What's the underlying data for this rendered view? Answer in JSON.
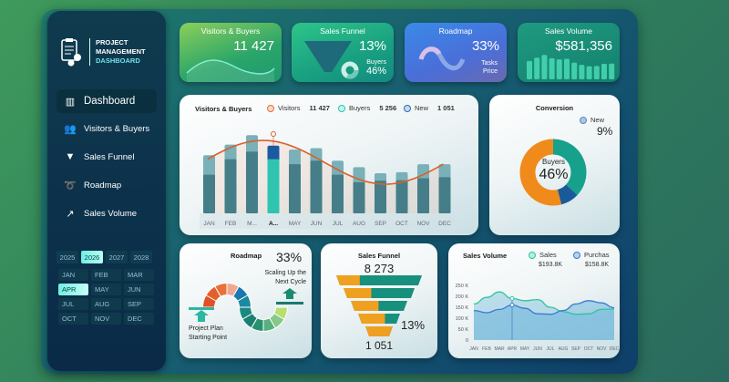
{
  "sidebar": {
    "logo": {
      "line1": "PROJECT",
      "line2": "MANAGEMENT",
      "line3": "DASHBOARD",
      "icon": "clipboard-gears-icon"
    },
    "nav": [
      {
        "label": "Dashboard",
        "icon": "bar-chart-icon",
        "active": true
      },
      {
        "label": "Visitors & Buyers",
        "icon": "users-icon"
      },
      {
        "label": "Sales Funnel",
        "icon": "funnel-icon"
      },
      {
        "label": "Roadmap",
        "icon": "road-icon"
      },
      {
        "label": "Sales Volume",
        "icon": "trend-icon"
      }
    ],
    "years": [
      "2025",
      "2026",
      "2027",
      "2028"
    ],
    "selected_year": "2026",
    "months": [
      "JAN",
      "FEB",
      "MAR",
      "APR",
      "MAY",
      "JUN",
      "JUL",
      "AUG",
      "SEP",
      "OCT",
      "NOV",
      "DEC"
    ],
    "selected_month": "APR"
  },
  "kpis": {
    "visitors": {
      "title": "Visitors & Buyers",
      "value": "11 427"
    },
    "funnel": {
      "title": "Sales Funnel",
      "value": "13%",
      "sub_label": "Buyers",
      "sub_value": "46%"
    },
    "roadmap": {
      "title": "Roadmap",
      "value": "33%",
      "line1": "Tasks",
      "line2": "Price"
    },
    "sales": {
      "title": "Sales Volume",
      "value": "$581,356"
    }
  },
  "visitors_chart": {
    "title": "Visitors & Buyers",
    "legend": [
      {
        "name": "Visitors",
        "value": "11 427",
        "color": "#e8703a"
      },
      {
        "name": "Buyers",
        "value": "5 256",
        "color": "#2ec4b0"
      },
      {
        "name": "New",
        "value": "1 051",
        "color": "#2a6fb0"
      }
    ],
    "categories": [
      "JAN",
      "FEB",
      "M...",
      "A...",
      "MAY",
      "JUN",
      "JUL",
      "AUG",
      "SEP",
      "OCT",
      "NOV",
      "DEC"
    ],
    "selected_index": 3,
    "totals": [
      116,
      137,
      156,
      135,
      127,
      130,
      105,
      92,
      80,
      82,
      98,
      98
    ],
    "inner": [
      77,
      108,
      123,
      108,
      98,
      105,
      77,
      62,
      65,
      66,
      70,
      72
    ]
  },
  "conversion": {
    "title": "Conversion",
    "legend_label": "New",
    "legend_value": "9%",
    "center_label": "Buyers",
    "center_value": "46%",
    "slices": [
      {
        "value": 37,
        "color": "#17a08c"
      },
      {
        "value": 9,
        "color": "#1a5a9a"
      },
      {
        "value": 54,
        "color": "#f08a1a"
      }
    ]
  },
  "roadmap": {
    "title": "Roadmap",
    "value": "33%",
    "end_label1": "Scaling Up the",
    "end_label2": "Next Cycle",
    "start_label1": "Project Plan",
    "start_label2": "Starting Point"
  },
  "funnel": {
    "title": "Sales Funnel",
    "top_value": "8 273",
    "rate": "13%",
    "bottom_value": "1 051",
    "orange_share": [
      0.55,
      0.65,
      0.7,
      0.8,
      1
    ]
  },
  "sales_volume": {
    "title": "Sales Volume",
    "legend": [
      {
        "name": "Sales",
        "value": "$193.8K",
        "color": "#2ec4a0"
      },
      {
        "name": "Purchas",
        "value": "$158.8K",
        "color": "#3a7ad0"
      }
    ],
    "y_ticks": [
      "250 K",
      "200 K",
      "150 K",
      "100 K",
      "50 K",
      "0"
    ],
    "ylim": [
      0,
      250
    ],
    "categories": [
      "JAN",
      "FEB",
      "MAR",
      "APR",
      "MAY",
      "JUN",
      "JUL",
      "AUG",
      "SEP",
      "OCT",
      "NOV",
      "DEC"
    ],
    "sales": [
      165,
      195,
      220,
      190,
      180,
      185,
      150,
      130,
      118,
      120,
      140,
      142
    ],
    "purchases": [
      135,
      125,
      140,
      160,
      145,
      120,
      118,
      135,
      165,
      180,
      170,
      148
    ],
    "selected_index": 3
  }
}
